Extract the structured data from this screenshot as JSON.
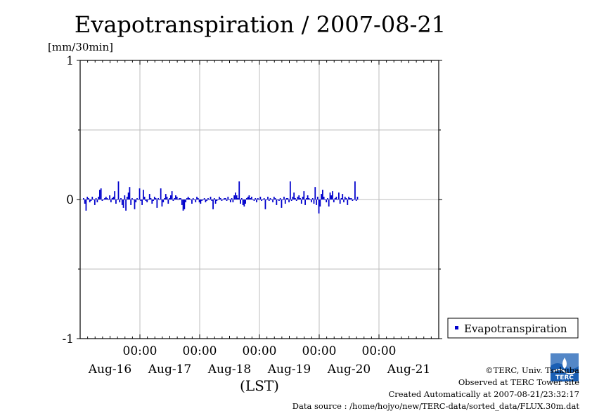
{
  "chart_data": {
    "type": "bar",
    "title": "Evapotranspiration / 2007-08-21",
    "unit_label": "[mm/30min]",
    "xlabel": "(LST)",
    "ylim": [
      -1,
      1
    ],
    "y_ticks": [
      {
        "value": 1,
        "label": "1"
      },
      {
        "value": 0,
        "label": "0"
      },
      {
        "value": -1,
        "label": "-1"
      }
    ],
    "y_minor": [
      0.5,
      -0.5
    ],
    "x_days": 6,
    "x_time_ticks": [
      {
        "day": 1,
        "label": "00:00"
      },
      {
        "day": 2,
        "label": "00:00"
      },
      {
        "day": 3,
        "label": "00:00"
      },
      {
        "day": 4,
        "label": "00:00"
      },
      {
        "day": 5,
        "label": "00:00"
      }
    ],
    "x_date_labels": [
      {
        "day": 0.5,
        "label": "Aug-16"
      },
      {
        "day": 1.5,
        "label": "Aug-17"
      },
      {
        "day": 2.5,
        "label": "Aug-18"
      },
      {
        "day": 3.5,
        "label": "Aug-19"
      },
      {
        "day": 4.5,
        "label": "Aug-20"
      },
      {
        "day": 5.5,
        "label": "Aug-21"
      }
    ],
    "grid": true,
    "legend": "right",
    "series": [
      {
        "name": "Evapotranspiration",
        "color": "#0000cc",
        "interval_hours": 0.5,
        "values": [
          0.01,
          -0.03,
          -0.08,
          0.02,
          0.01,
          -0.02,
          -0.01,
          0.02,
          0.0,
          -0.04,
          0.01,
          -0.02,
          0.02,
          0.07,
          0.08,
          -0.01,
          0.0,
          0.01,
          0.02,
          0.01,
          0.0,
          0.03,
          -0.02,
          0.01,
          0.02,
          0.06,
          -0.03,
          0.0,
          0.13,
          -0.02,
          0.01,
          -0.04,
          -0.06,
          0.03,
          -0.08,
          0.02,
          0.05,
          0.09,
          -0.04,
          0.01,
          0.0,
          -0.07,
          -0.02,
          0.01,
          0.0,
          0.08,
          -0.01,
          -0.04,
          0.07,
          0.02,
          -0.01,
          -0.02,
          0.0,
          0.04,
          0.01,
          -0.03,
          -0.01,
          0.02,
          0.01,
          -0.06,
          0.01,
          0.0,
          0.08,
          -0.05,
          -0.02,
          0.01,
          0.04,
          0.02,
          -0.03,
          0.01,
          0.03,
          0.06,
          -0.01,
          0.01,
          0.03,
          0.02,
          0.0,
          0.01,
          0.01,
          -0.04,
          -0.08,
          -0.07,
          -0.02,
          0.01,
          0.02,
          0.01,
          0.0,
          -0.03,
          0.01,
          0.0,
          -0.02,
          0.02,
          0.01,
          -0.02,
          -0.03,
          -0.01,
          0.0,
          0.01,
          -0.02,
          -0.01,
          0.01,
          0.0,
          0.02,
          -0.01,
          -0.07,
          0.01,
          -0.03,
          -0.01,
          0.0,
          0.02,
          0.01,
          -0.01,
          0.0,
          0.01,
          0.01,
          -0.01,
          0.02,
          0.0,
          -0.02,
          0.01,
          -0.02,
          0.03,
          0.05,
          0.03,
          0.01,
          0.13,
          -0.03,
          0.01,
          -0.04,
          -0.05,
          -0.03,
          0.01,
          0.02,
          0.03,
          0.01,
          0.02,
          0.0,
          -0.01,
          0.01,
          -0.02,
          0.01,
          0.0,
          0.02,
          -0.01,
          0.0,
          0.01,
          -0.07,
          0.0,
          0.02,
          -0.01,
          0.01,
          0.0,
          -0.02,
          0.02,
          0.01,
          -0.04,
          0.0,
          -0.01,
          0.01,
          -0.06,
          0.0,
          0.02,
          -0.03,
          0.01,
          0.01,
          -0.02,
          0.13,
          -0.01,
          0.02,
          0.05,
          0.01,
          -0.01,
          0.02,
          0.03,
          0.01,
          -0.03,
          0.02,
          0.06,
          -0.04,
          0.01,
          0.03,
          0.01,
          0.0,
          -0.02,
          0.01,
          -0.03,
          0.09,
          -0.04,
          0.02,
          -0.1,
          -0.05,
          0.04,
          0.07,
          0.02,
          0.0,
          -0.02,
          0.01,
          -0.05,
          0.05,
          0.03,
          0.06,
          -0.02,
          0.01,
          0.02,
          0.0,
          0.05,
          -0.03,
          0.01,
          0.04,
          -0.02,
          0.02,
          0.01,
          -0.04,
          0.02,
          0.01,
          0.01,
          -0.01,
          0.0,
          0.13,
          -0.01,
          0.02
        ]
      }
    ]
  },
  "credits": {
    "copyright": "©TERC, Univ. Tsukuba",
    "observed": "Observed at TERC Tower site",
    "created": "Created Automatically at 2007-08-21/23:32:17",
    "source": "Data source : /home/hojyo/new/TERC-data/sorted_data/FLUX.30m.dat"
  },
  "logo": {
    "text": "TERC",
    "color": "#1a5fb4"
  }
}
